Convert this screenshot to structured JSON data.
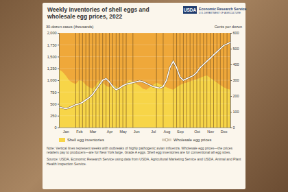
{
  "chart_data": {
    "type": "area-line",
    "title": "Weekly inventories of shell eggs and wholesale egg prices, 2022",
    "annotations": [
      "USDA",
      "Economic Research Service",
      "U.S. DEPARTMENT OF AGRICULTURE"
    ],
    "y_label": "30-dozen cases (thousands)",
    "y2_label": "Cents per dozen",
    "categories": [
      null,
      null,
      "Jan",
      null,
      null,
      null,
      "Feb",
      null,
      null,
      null,
      "Mar",
      null,
      null,
      null,
      null,
      "Apr",
      null,
      null,
      null,
      "May",
      null,
      null,
      null,
      "Jun",
      null,
      null,
      null,
      null,
      "Jul",
      null,
      null,
      null,
      "Aug",
      null,
      null,
      null,
      "Sep",
      null,
      null,
      null,
      null,
      "Oct",
      null,
      null,
      null,
      "Nov",
      null,
      null,
      null,
      "Dec",
      null,
      null
    ],
    "series": [
      {
        "name": "Shell egg inventories",
        "type": "area",
        "color": "#f7d548",
        "values": [
          1230,
          1180,
          1100,
          1000,
          950,
          920,
          1000,
          980,
          900,
          850,
          820,
          900,
          1000,
          950,
          880,
          850,
          900,
          870,
          830,
          880,
          950,
          1000,
          980,
          920,
          880,
          820,
          800,
          850,
          900,
          950,
          920,
          880,
          850,
          820,
          800,
          850,
          900,
          930,
          950,
          980,
          1000,
          1020,
          1050,
          1080,
          1100,
          1050,
          1000,
          950,
          900,
          850,
          820,
          800
        ]
      },
      {
        "name": "Wholesale egg prices",
        "type": "line",
        "color": "#ffffff",
        "axis": "y2",
        "marker": "circle",
        "values": [
          130,
          125,
          120,
          125,
          135,
          145,
          150,
          160,
          175,
          190,
          210,
          240,
          270,
          300,
          310,
          290,
          260,
          240,
          250,
          265,
          275,
          280,
          285,
          290,
          295,
          290,
          280,
          270,
          260,
          255,
          250,
          260,
          300,
          380,
          420,
          380,
          320,
          300,
          310,
          320,
          330,
          350,
          380,
          400,
          420,
          440,
          460,
          480,
          500,
          520,
          530,
          540
        ]
      }
    ],
    "outbreak_weeks": [
      5,
      6,
      7,
      8,
      9,
      10,
      11,
      12,
      13,
      14,
      15,
      16,
      17,
      18,
      19,
      20,
      22,
      29,
      31,
      34,
      35,
      36,
      37,
      38,
      39,
      40,
      41,
      42,
      43,
      44,
      45,
      46,
      47,
      48,
      49,
      50,
      51
    ],
    "ylim": [
      0,
      2000
    ],
    "yticks": [
      0,
      250,
      500,
      750,
      {
        "value": 1000,
        "label": "1,000"
      },
      {
        "value": 1250,
        "label": "1,250"
      },
      {
        "value": 1500,
        "label": "1,500"
      },
      {
        "value": 1750,
        "label": "1,750"
      },
      {
        "value": 2000,
        "label": "2,000"
      }
    ],
    "y2lim": [
      0,
      600
    ],
    "y2ticks": [
      0,
      100,
      200,
      300,
      400,
      500,
      600
    ],
    "grid": true,
    "legend": "bottom",
    "note": "Note: Vertical lines represent weeks with outbreaks of highly pathogenic avian influenza. Wholesale egg prices—the prices retailers pay to producers—are for New York large, Grade A eggs. Shell egg inventories are for conventional all egg sizes.",
    "source": "Source: USDA, Economic Research Service using data from USDA, Agricultural Marketing Service and USDA, Animal and Plant Health Inspection Service."
  }
}
